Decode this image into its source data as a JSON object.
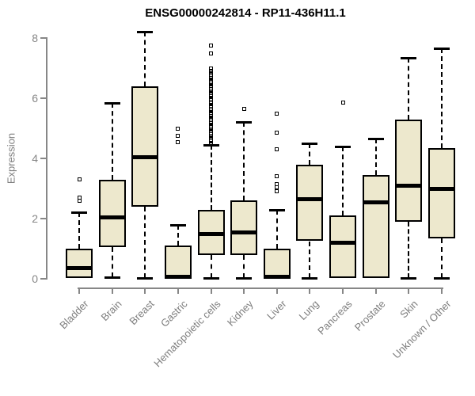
{
  "colors": {
    "box_fill": "#EDE8CD",
    "box_border": "#000000",
    "axis": "#878787",
    "tick_label": "#7e7e7e",
    "title_color": "#000000"
  },
  "chart_data": {
    "type": "boxplot",
    "title": "ENSG00000242814 - RP11-436H11.1",
    "ylabel": "Expression",
    "xlabel": "",
    "yticks": [
      0,
      2,
      4,
      6,
      8
    ],
    "ylim": [
      0,
      8.3
    ],
    "grid": false,
    "legend": "none",
    "categories": [
      "Bladder",
      "Brain",
      "Breast",
      "Gastric",
      "Hematopoietic cells",
      "Kidney",
      "Liver",
      "Lung",
      "Pancreas",
      "Prostate",
      "Skin",
      "Unknown / Other"
    ],
    "boxes": [
      {
        "category": "Bladder",
        "whisker_low": 0.02,
        "q1": 0.02,
        "median": 0.35,
        "q3": 1.0,
        "whisker_high": 2.2,
        "outliers": [
          3.3,
          2.7,
          2.6
        ]
      },
      {
        "category": "Brain",
        "whisker_low": 0.05,
        "q1": 1.05,
        "median": 2.05,
        "q3": 3.3,
        "whisker_high": 5.85,
        "outliers": []
      },
      {
        "category": "Breast",
        "whisker_low": 0.02,
        "q1": 2.4,
        "median": 4.05,
        "q3": 6.4,
        "whisker_high": 8.2,
        "outliers": []
      },
      {
        "category": "Gastric",
        "whisker_low": 0.02,
        "q1": 0.02,
        "median": 0.07,
        "q3": 1.1,
        "whisker_high": 1.78,
        "outliers": [
          5.0,
          4.75,
          4.55
        ]
      },
      {
        "category": "Hematopoietic cells",
        "whisker_low": 0.02,
        "q1": 0.8,
        "median": 1.5,
        "q3": 2.3,
        "whisker_high": 4.45,
        "outliers": [
          7.75,
          7.5,
          7.0,
          6.9,
          6.84,
          6.78,
          6.72,
          6.66,
          6.6,
          6.54,
          6.48,
          6.42,
          6.36,
          6.3,
          6.24,
          6.18,
          6.12,
          6.06,
          6.0,
          5.94,
          5.88,
          5.82,
          5.76,
          5.7,
          5.64,
          5.58,
          5.52,
          5.46,
          5.4,
          5.34,
          5.28,
          5.22,
          5.16,
          5.1,
          5.04,
          4.98,
          4.92,
          4.86,
          4.8,
          4.74,
          4.68,
          4.62,
          4.56,
          4.5
        ]
      },
      {
        "category": "Kidney",
        "whisker_low": 0.02,
        "q1": 0.78,
        "median": 1.55,
        "q3": 2.6,
        "whisker_high": 5.2,
        "outliers": [
          5.65
        ]
      },
      {
        "category": "Liver",
        "whisker_low": 0.02,
        "q1": 0.02,
        "median": 0.07,
        "q3": 1.0,
        "whisker_high": 2.3,
        "outliers": [
          5.5,
          4.85,
          4.3,
          3.4,
          3.15,
          3.05,
          2.9
        ]
      },
      {
        "category": "Lung",
        "whisker_low": 0.02,
        "q1": 1.25,
        "median": 2.65,
        "q3": 3.8,
        "whisker_high": 4.5,
        "outliers": []
      },
      {
        "category": "Pancreas",
        "whisker_low": 0.02,
        "q1": 0.02,
        "median": 1.2,
        "q3": 2.1,
        "whisker_high": 4.4,
        "outliers": [
          5.85
        ]
      },
      {
        "category": "Prostate",
        "whisker_low": 0.02,
        "q1": 0.02,
        "median": 2.55,
        "q3": 3.45,
        "whisker_high": 4.65,
        "outliers": []
      },
      {
        "category": "Skin",
        "whisker_low": 0.02,
        "q1": 1.9,
        "median": 3.1,
        "q3": 5.3,
        "whisker_high": 7.35,
        "outliers": []
      },
      {
        "category": "Unknown / Other",
        "whisker_low": 0.02,
        "q1": 1.35,
        "median": 3.0,
        "q3": 4.35,
        "whisker_high": 7.65,
        "outliers": []
      }
    ]
  }
}
